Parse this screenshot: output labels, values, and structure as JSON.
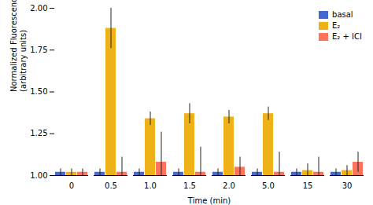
{
  "chart_data": {
    "type": "bar",
    "categories": [
      "0",
      "0.5",
      "1.0",
      "1.5",
      "2.0",
      "5.0",
      "15",
      "30"
    ],
    "series": [
      {
        "name": "basal",
        "values": [
          1.02,
          1.02,
          1.02,
          1.02,
          1.02,
          1.02,
          1.02,
          1.02
        ],
        "errors": [
          0.02,
          0.02,
          0.02,
          0.02,
          0.02,
          0.02,
          0.02,
          0.02
        ]
      },
      {
        "name": "E₂",
        "values": [
          1.02,
          1.88,
          1.34,
          1.37,
          1.35,
          1.37,
          1.03,
          1.03
        ],
        "errors": [
          0.02,
          0.12,
          0.04,
          0.06,
          0.04,
          0.04,
          0.04,
          0.03
        ]
      },
      {
        "name": "E₂ + ICI",
        "values": [
          1.02,
          1.02,
          1.08,
          1.02,
          1.05,
          1.02,
          1.02,
          1.08
        ],
        "errors": [
          0.02,
          0.09,
          0.18,
          0.15,
          0.06,
          0.12,
          0.09,
          0.06
        ]
      }
    ],
    "xlabel": "Time (min)",
    "ylabel": "Normalized Fluorescence Intensity\n(arbitrary units)",
    "ylim": [
      1.0,
      2.0
    ],
    "yticks": [
      {
        "value": 1.0,
        "label": "1.00"
      },
      {
        "value": 1.25,
        "label": "1.25"
      },
      {
        "value": 1.5,
        "label": "1.50"
      },
      {
        "value": 1.75,
        "label": "1.75"
      },
      {
        "value": 2.0,
        "label": "2.00"
      }
    ],
    "grid": false,
    "legend": "upper right"
  }
}
